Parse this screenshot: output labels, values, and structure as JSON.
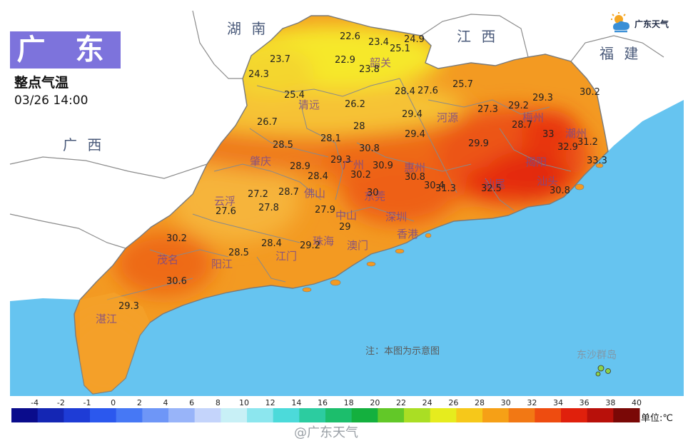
{
  "title": "广 东",
  "subtitle": "整点气温",
  "datetime": "03/26 14:00",
  "logo_text": "广东天气",
  "note": "注：本图为示意图",
  "island_label": "东沙群岛",
  "watermark": "@广东天气",
  "unit_label": "单位:℃",
  "provinces": [
    {
      "name": "湖 南"
    },
    {
      "name": "江 西"
    },
    {
      "name": "福 建"
    },
    {
      "name": "广 西"
    }
  ],
  "cities": [
    "韶关",
    "清远",
    "河源",
    "梅州",
    "潮州",
    "揭阳",
    "汕头",
    "汕尾",
    "惠州",
    "广州",
    "肇庆",
    "佛山",
    "东莞",
    "深圳",
    "香港",
    "中山",
    "珠海",
    "澳门",
    "江门",
    "阳江",
    "茂名",
    "湛江",
    "云浮"
  ],
  "temperatures": [
    "22.6",
    "23.4",
    "24.9",
    "25.1",
    "23.7",
    "22.9",
    "23.8",
    "24.3",
    "25.4",
    "26.2",
    "28.4",
    "27.6",
    "25.7",
    "26.7",
    "29.4",
    "27.3",
    "29.2",
    "29.3",
    "30.2",
    "28.1",
    "28",
    "29.4",
    "29.9",
    "28.7",
    "33",
    "28.5",
    "29.3",
    "30.8",
    "32.9",
    "31.2",
    "28.9",
    "28.4",
    "30.9",
    "30.2",
    "30.8",
    "30.4",
    "31.3",
    "32.5",
    "33.3",
    "30.8",
    "27.2",
    "28.7",
    "27.6",
    "27.8",
    "27.9",
    "29",
    "30",
    "30.2",
    "28.4",
    "29.2",
    "30.6",
    "28.5",
    "29.3"
  ],
  "legend": {
    "labels": [
      "-4",
      "-2",
      "-1",
      "0",
      "2",
      "4",
      "6",
      "8",
      "10",
      "12",
      "14",
      "16",
      "18",
      "20",
      "22",
      "24",
      "26",
      "28",
      "30",
      "32",
      "34",
      "36",
      "38",
      "40"
    ],
    "colors": [
      "#0a0c8c",
      "#1426b4",
      "#1e3cd6",
      "#2b58ee",
      "#4678f5",
      "#6e96f7",
      "#98b4f9",
      "#c4d4fb",
      "#c8f0f6",
      "#8ce6ee",
      "#4cdada",
      "#2ccca0",
      "#1cbe6c",
      "#14b03e",
      "#62c828",
      "#aade24",
      "#e6ec1e",
      "#f6c81a",
      "#f6a016",
      "#f27814",
      "#ee4c10",
      "#e0200c",
      "#b8100a",
      "#7a0806"
    ]
  },
  "colors": {
    "sea": "#66c4f0",
    "land_outside": "#ffffff",
    "province_boundary": "#8c8c8c",
    "title_bg": "#7d73dc"
  }
}
